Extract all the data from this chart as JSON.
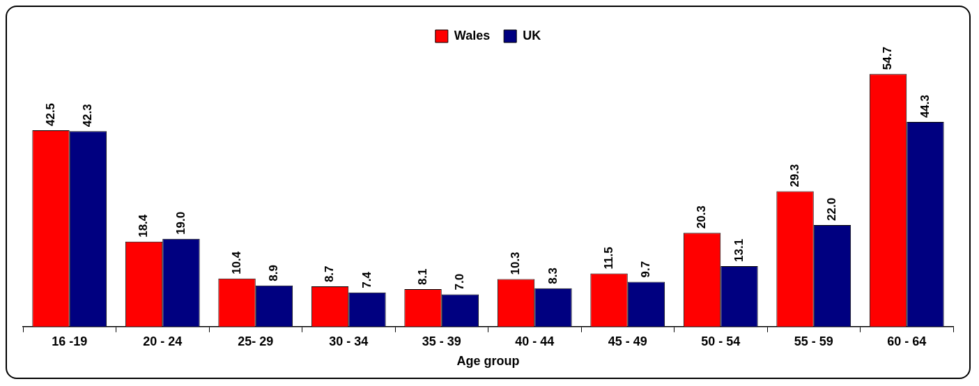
{
  "chart_data": {
    "type": "bar",
    "xlabel": "Age group",
    "categories": [
      "16 -19",
      "20 - 24",
      "25- 29",
      "30 - 34",
      "35 - 39",
      "40 - 44",
      "45 - 49",
      "50 - 54",
      "55 - 59",
      "60 - 64"
    ],
    "series": [
      {
        "name": "Wales",
        "color": "#ff0000",
        "values": [
          42.5,
          18.4,
          10.4,
          8.7,
          8.1,
          10.3,
          11.5,
          20.3,
          29.3,
          54.7
        ],
        "value_labels": [
          "42.5",
          "18.4",
          "10.4",
          "8.7",
          "8.1",
          "10.3",
          "11.5",
          "20.3",
          "29.3",
          "54.7"
        ]
      },
      {
        "name": "UK",
        "color": "#000080",
        "values": [
          42.3,
          19.0,
          8.9,
          7.4,
          7.0,
          8.3,
          9.7,
          13.1,
          22.0,
          44.3
        ],
        "value_labels": [
          "42.3",
          "19.0",
          "8.9",
          "7.4",
          "7.0",
          "8.3",
          "9.7",
          "13.1",
          "22.0",
          "44.3"
        ]
      }
    ],
    "grid": false,
    "legend": "top"
  }
}
